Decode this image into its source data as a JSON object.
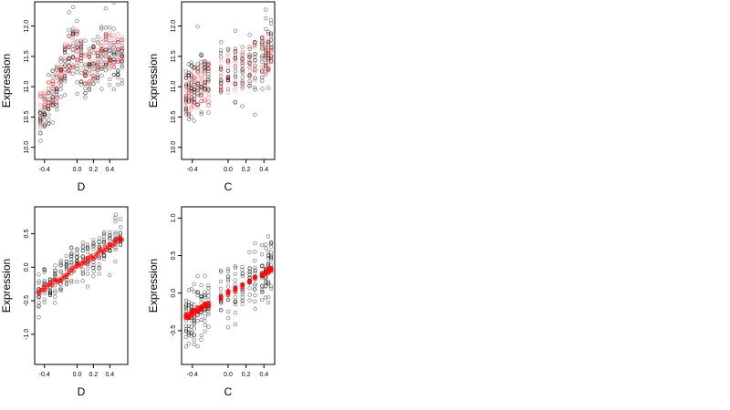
{
  "figure": {
    "panels_note": "",
    "colors": {
      "observed": "#000000",
      "fitted": "#ff0000",
      "background": "#ffffff"
    }
  },
  "chart_data": [
    {
      "type": "scatter",
      "xlabel": "D",
      "ylabel": "Expression",
      "xlim": [
        -0.52,
        0.62
      ],
      "ylim": [
        9.8,
        12.4
      ],
      "xticks": [
        -0.4,
        0.0,
        0.2,
        0.4
      ],
      "xtick_labels": [
        "-0.4",
        "0.0",
        "0.2",
        "0.4"
      ],
      "yticks": [
        10.0,
        10.5,
        11.0,
        11.5,
        12.0
      ],
      "ytick_labels": [
        "10.0",
        "10.5",
        "11.0",
        "11.5",
        "12.0"
      ],
      "grid": false,
      "legend": "none",
      "fitted_alpha": 0.35,
      "x_groups": [
        -0.45,
        -0.4,
        -0.35,
        -0.3,
        -0.25,
        -0.2,
        -0.15,
        -0.1,
        -0.05,
        0.0,
        0.05,
        0.1,
        0.15,
        0.2,
        0.25,
        0.3,
        0.35,
        0.4,
        0.45,
        0.5,
        0.55
      ],
      "observed_mean": [
        10.5,
        10.6,
        10.75,
        10.9,
        11.0,
        11.1,
        11.35,
        11.5,
        11.6,
        11.55,
        11.5,
        11.2,
        11.25,
        11.35,
        11.4,
        11.5,
        11.55,
        11.55,
        11.45,
        11.5,
        11.5
      ],
      "observed_spread": [
        0.45,
        0.4,
        0.4,
        0.45,
        0.4,
        0.45,
        0.5,
        0.5,
        0.55,
        0.5,
        0.5,
        0.4,
        0.45,
        0.5,
        0.5,
        0.45,
        0.45,
        0.45,
        0.45,
        0.35,
        0.35
      ],
      "fitted_mean": [
        10.6,
        10.65,
        10.8,
        10.95,
        11.1,
        11.2,
        11.4,
        11.55,
        11.65,
        11.6,
        11.5,
        11.25,
        11.3,
        11.4,
        11.45,
        11.55,
        11.6,
        11.65,
        11.6,
        11.65,
        11.6
      ],
      "fitted_spread": [
        0.3,
        0.3,
        0.3,
        0.3,
        0.3,
        0.3,
        0.35,
        0.35,
        0.35,
        0.35,
        0.3,
        0.3,
        0.3,
        0.3,
        0.3,
        0.3,
        0.3,
        0.3,
        0.3,
        0.25,
        0.25
      ]
    },
    {
      "type": "scatter",
      "xlabel": "C",
      "ylabel": "Expression",
      "xlim": [
        -0.52,
        0.52
      ],
      "ylim": [
        9.8,
        12.4
      ],
      "xticks": [
        -0.4,
        0.0,
        0.2,
        0.4
      ],
      "xtick_labels": [
        "-0.4",
        "0.0",
        "0.2",
        "0.4"
      ],
      "yticks": [
        10.0,
        10.5,
        11.0,
        11.5,
        12.0
      ],
      "ytick_labels": [
        "10.0",
        "10.5",
        "11.0",
        "11.5",
        "12.0"
      ],
      "grid": false,
      "legend": "none",
      "fitted_alpha": 0.35,
      "x_groups": [
        -0.47,
        -0.44,
        -0.41,
        -0.38,
        -0.34,
        -0.3,
        -0.26,
        -0.22,
        -0.08,
        0.0,
        0.08,
        0.16,
        0.24,
        0.3,
        0.38,
        0.42,
        0.45,
        0.48
      ],
      "observed_mean": [
        10.85,
        10.9,
        10.95,
        11.0,
        11.0,
        11.05,
        11.1,
        11.1,
        11.15,
        11.2,
        11.25,
        11.3,
        11.35,
        11.4,
        11.5,
        11.55,
        11.6,
        11.65
      ],
      "observed_spread": [
        0.5,
        0.5,
        0.5,
        0.5,
        0.55,
        0.55,
        0.5,
        0.5,
        0.5,
        0.5,
        0.5,
        0.5,
        0.5,
        0.55,
        0.55,
        0.55,
        0.55,
        0.55
      ],
      "fitted_mean": [
        10.9,
        10.92,
        10.95,
        10.98,
        11.0,
        11.03,
        11.06,
        11.08,
        11.15,
        11.2,
        11.25,
        11.3,
        11.35,
        11.4,
        11.5,
        11.52,
        11.55,
        11.6
      ],
      "fitted_spread": [
        0.35,
        0.35,
        0.35,
        0.35,
        0.35,
        0.35,
        0.35,
        0.35,
        0.35,
        0.35,
        0.35,
        0.35,
        0.35,
        0.35,
        0.35,
        0.35,
        0.35,
        0.35
      ]
    },
    {
      "type": "scatter",
      "xlabel": "D",
      "ylabel": "Expression",
      "xlim": [
        -0.52,
        0.62
      ],
      "ylim": [
        -1.45,
        0.9
      ],
      "xticks": [
        -0.4,
        0.0,
        0.2,
        0.4
      ],
      "xtick_labels": [
        "-0.4",
        "0.0",
        "0.2",
        "0.4"
      ],
      "yticks": [
        -1.0,
        -0.5,
        0.0,
        0.5
      ],
      "ytick_labels": [
        "-1.0",
        "-0.5",
        "0.0",
        "0.5"
      ],
      "grid": false,
      "legend": "none",
      "fitted_alpha": 0.85,
      "x_groups": [
        -0.47,
        -0.4,
        -0.33,
        -0.27,
        -0.2,
        -0.13,
        -0.07,
        0.0,
        0.07,
        0.13,
        0.2,
        0.27,
        0.33,
        0.4,
        0.47,
        0.53
      ],
      "observed_mean": [
        -0.4,
        -0.3,
        -0.25,
        -0.18,
        -0.1,
        -0.05,
        0.0,
        0.05,
        0.1,
        0.12,
        0.18,
        0.22,
        0.28,
        0.35,
        0.4,
        0.45
      ],
      "observed_spread": [
        0.35,
        0.3,
        0.3,
        0.3,
        0.3,
        0.3,
        0.3,
        0.3,
        0.3,
        0.3,
        0.3,
        0.3,
        0.3,
        0.3,
        0.3,
        0.25
      ],
      "fitted_slope": 0.8,
      "fitted_intercept": 0.0,
      "fitted_x_range": [
        -0.48,
        0.55
      ],
      "fitted_jitter": 0.04
    },
    {
      "type": "scatter",
      "xlabel": "C",
      "ylabel": "Expression",
      "xlim": [
        -0.52,
        0.52
      ],
      "ylim": [
        -0.95,
        1.15
      ],
      "xticks": [
        -0.4,
        0.0,
        0.2,
        0.4
      ],
      "xtick_labels": [
        "-0.4",
        "0.0",
        "0.2",
        "0.4"
      ],
      "yticks": [
        -0.5,
        0.0,
        0.5,
        1.0
      ],
      "ytick_labels": [
        "-0.5",
        "0.0",
        "0.5",
        "1.0"
      ],
      "grid": false,
      "legend": "none",
      "fitted_alpha": 0.85,
      "x_groups": [
        -0.47,
        -0.44,
        -0.41,
        -0.38,
        -0.34,
        -0.3,
        -0.26,
        -0.22,
        -0.08,
        0.0,
        0.08,
        0.16,
        0.24,
        0.3,
        0.38,
        0.42,
        0.45,
        0.48
      ],
      "observed_mean": [
        -0.35,
        -0.3,
        -0.28,
        -0.25,
        -0.22,
        -0.2,
        -0.18,
        -0.15,
        -0.05,
        0.0,
        0.05,
        0.1,
        0.15,
        0.18,
        0.25,
        0.28,
        0.3,
        0.32
      ],
      "observed_spread": [
        0.35,
        0.35,
        0.35,
        0.35,
        0.4,
        0.4,
        0.35,
        0.35,
        0.35,
        0.35,
        0.35,
        0.35,
        0.35,
        0.4,
        0.4,
        0.4,
        0.4,
        0.4
      ],
      "fitted_means": [
        -0.32,
        -0.3,
        -0.27,
        -0.25,
        -0.22,
        -0.2,
        -0.17,
        -0.15,
        -0.05,
        0.0,
        0.05,
        0.1,
        0.15,
        0.2,
        0.25,
        0.27,
        0.3,
        0.32
      ],
      "fitted_jitter": 0.03
    }
  ]
}
